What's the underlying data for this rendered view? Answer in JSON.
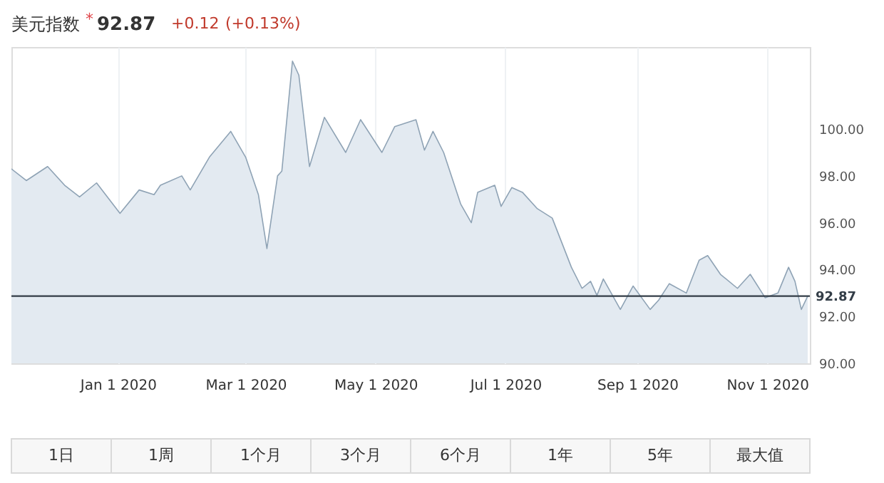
{
  "chart_data": {
    "type": "area",
    "title": "美元指数",
    "annotations": [
      "*",
      "92.87",
      "+0.12",
      "(+0.13%)",
      "1日",
      "1周",
      "1个月",
      "3个月",
      "6个月",
      "1年",
      "5年",
      "最大值"
    ],
    "x": [
      "2019-11-12",
      "2019-11-19",
      "2019-11-29",
      "2019-12-07",
      "2019-12-14",
      "2019-12-22",
      "2020-01-02",
      "2020-01-11",
      "2020-01-18",
      "2020-01-21",
      "2020-01-31",
      "2020-02-04",
      "2020-02-13",
      "2020-02-23",
      "2020-03-01",
      "2020-03-07",
      "2020-03-11",
      "2020-03-16",
      "2020-03-18",
      "2020-03-23",
      "2020-03-26",
      "2020-03-31",
      "2020-04-07",
      "2020-04-17",
      "2020-04-24",
      "2020-05-04",
      "2020-05-10",
      "2020-05-20",
      "2020-05-24",
      "2020-05-28",
      "2020-06-02",
      "2020-06-10",
      "2020-06-15",
      "2020-06-18",
      "2020-06-26",
      "2020-06-29",
      "2020-07-04",
      "2020-07-09",
      "2020-07-16",
      "2020-07-23",
      "2020-08-01",
      "2020-08-06",
      "2020-08-10",
      "2020-08-13",
      "2020-08-16",
      "2020-08-24",
      "2020-08-30",
      "2020-09-07",
      "2020-09-11",
      "2020-09-16",
      "2020-09-24",
      "2020-09-30",
      "2020-10-04",
      "2020-10-10",
      "2020-10-18",
      "2020-10-24",
      "2020-10-31",
      "2020-11-06",
      "2020-11-11",
      "2020-11-14",
      "2020-11-17",
      "2020-11-20"
    ],
    "series": [
      {
        "color": "#e3eaf1",
        "values": [
          98.3,
          97.8,
          98.4,
          97.6,
          97.1,
          97.7,
          96.4,
          97.4,
          97.2,
          97.6,
          98.0,
          97.4,
          98.8,
          99.9,
          98.8,
          97.2,
          94.9,
          98.0,
          98.2,
          102.9,
          102.3,
          98.4,
          100.5,
          99.0,
          100.4,
          99.0,
          100.1,
          100.4,
          99.1,
          99.9,
          99.0,
          96.8,
          96.0,
          97.3,
          97.6,
          96.7,
          97.5,
          97.3,
          96.6,
          96.2,
          94.1,
          93.2,
          93.5,
          92.9,
          93.6,
          92.3,
          93.3,
          92.3,
          92.7,
          93.4,
          93.0,
          94.4,
          94.6,
          93.8,
          93.2,
          93.8,
          92.8,
          93.0,
          94.1,
          93.5,
          92.3,
          92.87
        ]
      }
    ],
    "xlim": [
      "2019-11-12",
      "2020-11-21"
    ],
    "xticks": [
      {
        "value": "2020-01-01",
        "label": "Jan 1 2020"
      },
      {
        "value": "2020-03-01",
        "label": "Mar 1 2020"
      },
      {
        "value": "2020-05-01",
        "label": "May 1 2020"
      },
      {
        "value": "2020-07-01",
        "label": "Jul 1 2020"
      },
      {
        "value": "2020-09-01",
        "label": "Sep 1 2020"
      },
      {
        "value": "2020-11-01",
        "label": "Nov 1 2020"
      }
    ],
    "ylim": [
      90,
      103.5
    ],
    "yticks": [
      {
        "value": 90,
        "label": "90.00"
      },
      {
        "value": 92,
        "label": "92.00"
      },
      {
        "value": 94,
        "label": "94.00"
      },
      {
        "value": 96,
        "label": "96.00"
      },
      {
        "value": 98,
        "label": "98.00"
      },
      {
        "value": 100,
        "label": "100.00"
      }
    ],
    "ref_lines": [
      {
        "axis": "y",
        "value": 92.87,
        "label": "92.87",
        "color": "#333d47"
      }
    ],
    "grid": "x"
  }
}
